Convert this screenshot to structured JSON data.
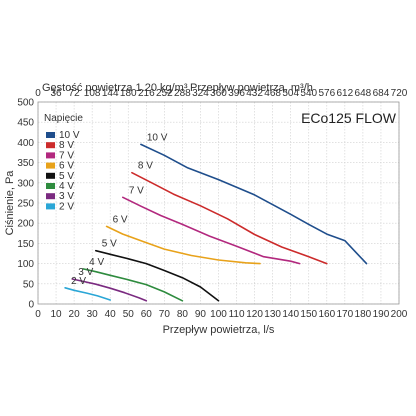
{
  "chart_data": {
    "type": "line",
    "model_title": "ECo125 FLOW",
    "xlabel": "Przepływ powietrza, l/s",
    "ylabel": "Ciśnienie, Pa",
    "top_density_label": "Gęstość powietrza 1.20 kg/m³",
    "top_flow_label": "Przepływ powietrza, m³/h",
    "xlim": [
      0,
      200
    ],
    "ylim": [
      0,
      500
    ],
    "x_ticks": [
      0,
      10,
      20,
      30,
      40,
      50,
      60,
      70,
      80,
      90,
      100,
      110,
      120,
      130,
      140,
      150,
      160,
      170,
      180,
      190,
      200
    ],
    "y_ticks": [
      0,
      50,
      100,
      150,
      200,
      250,
      300,
      350,
      400,
      450,
      500
    ],
    "top_ticks": [
      0,
      36,
      72,
      108,
      144,
      180,
      216,
      252,
      288,
      324,
      360,
      396,
      432,
      468,
      504,
      540,
      576,
      612,
      648,
      684,
      720
    ],
    "grid": true,
    "legend_title": "Napięcie",
    "legend_position": "top-left",
    "series": [
      {
        "name": "10 V",
        "color": "#1f4e8c",
        "x": [
          57,
          70,
          83,
          100,
          120,
          140,
          150,
          160,
          170,
          182
        ],
        "y": [
          395,
          368,
          337,
          308,
          270,
          222,
          197,
          173,
          157,
          100
        ]
      },
      {
        "name": "8 V",
        "color": "#cc2b2b",
        "x": [
          52,
          63,
          75,
          90,
          105,
          120,
          135,
          150,
          160
        ],
        "y": [
          325,
          300,
          272,
          243,
          211,
          172,
          141,
          117,
          100
        ]
      },
      {
        "name": "7 V",
        "color": "#b2287e",
        "x": [
          47,
          57,
          68,
          80,
          95,
          110,
          125,
          140,
          145
        ],
        "y": [
          264,
          242,
          219,
          197,
          168,
          143,
          117,
          106,
          100
        ]
      },
      {
        "name": "6 V",
        "color": "#e8a21a",
        "x": [
          38,
          47,
          58,
          70,
          85,
          100,
          115,
          123
        ],
        "y": [
          192,
          173,
          155,
          136,
          120,
          109,
          102,
          100
        ]
      },
      {
        "name": "5 V",
        "color": "#111111",
        "x": [
          32,
          40,
          50,
          60,
          70,
          80,
          90,
          100
        ],
        "y": [
          132,
          123,
          112,
          100,
          83,
          65,
          42,
          8
        ]
      },
      {
        "name": "4 V",
        "color": "#2e8b3e",
        "x": [
          25,
          32,
          40,
          50,
          60,
          70,
          80
        ],
        "y": [
          87,
          80,
          71,
          60,
          48,
          30,
          8
        ]
      },
      {
        "name": "3 V",
        "color": "#7a2a80",
        "x": [
          19,
          25,
          32,
          40,
          48,
          56,
          60
        ],
        "y": [
          62,
          56,
          49,
          39,
          28,
          15,
          8
        ]
      },
      {
        "name": "2 V",
        "color": "#2aa6d6",
        "x": [
          15,
          20,
          27,
          33,
          40
        ],
        "y": [
          40,
          34,
          27,
          20,
          10
        ]
      }
    ]
  }
}
